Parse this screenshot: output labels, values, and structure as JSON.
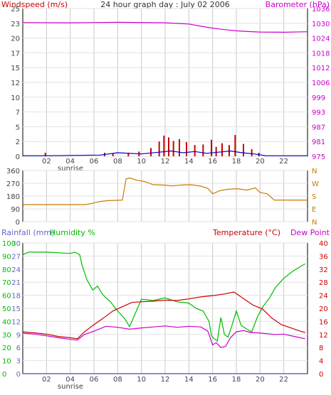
{
  "colors": {
    "wind": "#cc0000",
    "windAvg": "#0000cc",
    "barometer": "#cc00cc",
    "direction": "#cc7a00",
    "rain": "#6666cc",
    "humidity": "#00bb00",
    "temperature": "#cc0000",
    "dewpoint": "#cc00cc",
    "tick": "#444444",
    "axisRight": "#cc00cc",
    "panelBorder": "#000000"
  },
  "chart_data": [
    {
      "type": "line",
      "title": "24 hour graph day : July 02 2006",
      "ylabel_left": "Windspeed (m/s)",
      "ylabel_right": "Barometer (hPa)",
      "xticks": [
        "02",
        "04",
        "06",
        "08",
        "10",
        "12",
        "14",
        "16",
        "18",
        "20",
        "22"
      ],
      "x_annotation": "sunrise",
      "left_ticks": [
        "0",
        "2",
        "5",
        "7",
        "10",
        "12",
        "15",
        "17",
        "20",
        "23",
        "25"
      ],
      "right_ticks": [
        "975",
        "981",
        "987",
        "993",
        "999",
        "1006",
        "1012",
        "1018",
        "1024",
        "1030",
        "1036"
      ],
      "ylim_left": [
        0,
        25
      ],
      "ylim_right": [
        975,
        1036
      ],
      "xlim_hours": [
        0,
        24
      ],
      "series": [
        {
          "role": "barometer",
          "axis": "right",
          "style": "line",
          "x": [
            0,
            4,
            8,
            12,
            14,
            15,
            16,
            17,
            18,
            19,
            20,
            22,
            24
          ],
          "y": [
            1030.2,
            1030.1,
            1030.3,
            1030.1,
            1029.6,
            1028.7,
            1027.9,
            1027.3,
            1026.8,
            1026.5,
            1026.3,
            1026.2,
            1026.4
          ]
        },
        {
          "role": "wind-gust",
          "axis": "left",
          "style": "bars",
          "x": [
            1.9,
            6.9,
            7.6,
            8.9,
            9.8,
            10.8,
            11.5,
            11.9,
            12.3,
            12.7,
            13.2,
            13.8,
            14.5,
            15.2,
            15.9,
            16.3,
            16.8,
            17.4,
            17.9,
            18.6,
            19.3,
            19.9
          ],
          "y": [
            0.6,
            0.6,
            0.5,
            0.6,
            0.8,
            1.4,
            2.5,
            3.5,
            3.2,
            2.6,
            2.9,
            2.4,
            1.9,
            2.0,
            2.8,
            1.6,
            2.2,
            1.9,
            3.6,
            2.1,
            1.2,
            0.6
          ]
        },
        {
          "role": "wind-average",
          "axis": "left",
          "style": "line",
          "x": [
            0,
            2,
            6.5,
            8,
            10,
            11.5,
            12.5,
            13.5,
            14.5,
            15.5,
            16.5,
            17.5,
            18.5,
            19.5,
            20.5,
            24
          ],
          "y": [
            0.1,
            0.1,
            0.2,
            0.6,
            0.4,
            0.7,
            0.9,
            0.6,
            0.8,
            0.5,
            0.7,
            0.9,
            0.6,
            0.4,
            0.1,
            0.1
          ]
        }
      ]
    },
    {
      "type": "line",
      "title": "",
      "left_ticks": [
        "0",
        "90",
        "180",
        "270",
        "360"
      ],
      "right_ticks": [
        "N",
        "E",
        "S",
        "W",
        "N"
      ],
      "ylim": [
        0,
        360
      ],
      "xlim_hours": [
        0,
        24
      ],
      "series": [
        {
          "role": "wind-direction",
          "x": [
            0,
            5.3,
            5.8,
            6.5,
            7.2,
            7.9,
            8.4,
            8.7,
            9.0,
            9.6,
            10.3,
            11.0,
            11.8,
            12.6,
            13.4,
            14.2,
            15.0,
            15.6,
            16.0,
            16.6,
            17.3,
            18.1,
            18.9,
            19.6,
            20.0,
            20.6,
            21.2,
            24
          ],
          "y": [
            120,
            120,
            128,
            142,
            148,
            150,
            152,
            300,
            308,
            292,
            282,
            260,
            258,
            252,
            258,
            260,
            250,
            234,
            196,
            218,
            228,
            232,
            222,
            238,
            205,
            196,
            152,
            152
          ]
        }
      ]
    },
    {
      "type": "line",
      "title": "",
      "ylabel_left_1": "Rainfall (mm)",
      "ylabel_left_2": "Humidity %",
      "ylabel_right": "Temperature (°C)",
      "ylabel_right_2": "Dew Point",
      "xticks": [
        "02",
        "04",
        "06",
        "08",
        "10",
        "12",
        "14",
        "16",
        "18",
        "20",
        "22"
      ],
      "x_annotation": "sunrise",
      "rain_ticks": [
        "0",
        "3",
        "6",
        "9",
        "12",
        "15",
        "18",
        "21",
        "24",
        "27",
        "30"
      ],
      "humidity_ticks": [
        "0",
        "10",
        "20",
        "30",
        "40",
        "50",
        "60",
        "70",
        "80",
        "90",
        "100"
      ],
      "temp_ticks": [
        "0",
        "4",
        "8",
        "12",
        "16",
        "20",
        "24",
        "28",
        "32",
        "36",
        "40"
      ],
      "ylim_rain": [
        0,
        30
      ],
      "ylim_humidity": [
        0,
        100
      ],
      "ylim_temp": [
        0,
        40
      ],
      "xlim_hours": [
        0,
        24
      ],
      "series": [
        {
          "role": "rainfall",
          "axis": "rain",
          "x": [
            0,
            24
          ],
          "y": [
            0,
            0
          ]
        },
        {
          "role": "humidity",
          "axis": "humidity",
          "x": [
            0,
            0.5,
            2,
            4,
            4.4,
            4.8,
            5.0,
            5.4,
            5.9,
            6.3,
            6.7,
            7.0,
            7.4,
            7.8,
            8.2,
            8.6,
            9.0,
            10,
            11,
            12,
            13,
            14,
            14.6,
            15.2,
            15.7,
            15.9,
            16.1,
            16.4,
            16.7,
            17.0,
            17.3,
            17.6,
            18,
            18.4,
            18.9,
            19.3,
            19.8,
            20.3,
            20.8,
            21.3,
            22,
            22.7,
            23.4,
            23.8
          ],
          "y": [
            91,
            93,
            93,
            92,
            93,
            91,
            83,
            72,
            64,
            67,
            61,
            58,
            55,
            50,
            46,
            42,
            36,
            57,
            56,
            58,
            55,
            54,
            50,
            48,
            40,
            29,
            27,
            25,
            43,
            30,
            28,
            36,
            48,
            37,
            34,
            32,
            44,
            52,
            58,
            66,
            73,
            78,
            82,
            84
          ]
        },
        {
          "role": "temperature",
          "axis": "temp",
          "x": [
            0,
            1,
            2,
            3,
            4,
            4.6,
            5.2,
            6,
            6.8,
            7.6,
            8.4,
            9.2,
            10,
            11,
            12,
            13,
            14,
            15,
            16,
            17,
            17.8,
            18.6,
            19.4,
            20.2,
            21,
            21.8,
            22.6,
            23.4,
            23.8
          ],
          "y": [
            12.8,
            12.5,
            12.1,
            11.4,
            11.0,
            10.7,
            12.8,
            15.0,
            17.0,
            19.2,
            20.5,
            21.8,
            22.0,
            22.2,
            22.5,
            22.4,
            22.9,
            23.5,
            23.9,
            24.4,
            25.0,
            23.0,
            21.0,
            19.8,
            17.0,
            15.0,
            14.0,
            13.0,
            12.6
          ]
        },
        {
          "role": "dewpoint",
          "axis": "temp",
          "x": [
            0,
            1,
            2,
            3,
            4,
            4.6,
            5.2,
            6,
            7,
            8,
            9,
            10,
            11,
            12,
            13,
            14,
            15,
            15.6,
            16.0,
            16.3,
            16.7,
            17.1,
            17.5,
            18.0,
            18.6,
            19.2,
            19.8,
            20.4,
            21.2,
            22,
            23,
            23.8
          ],
          "y": [
            12.4,
            12.1,
            11.6,
            11.0,
            10.5,
            10.3,
            12.0,
            13.0,
            14.5,
            14.2,
            13.6,
            14.0,
            14.3,
            14.6,
            14.2,
            14.5,
            14.3,
            13.0,
            8.8,
            9.5,
            8.0,
            8.4,
            11.0,
            12.8,
            13.2,
            12.6,
            12.5,
            12.3,
            12.0,
            12.1,
            11.3,
            10.7
          ]
        }
      ]
    }
  ]
}
